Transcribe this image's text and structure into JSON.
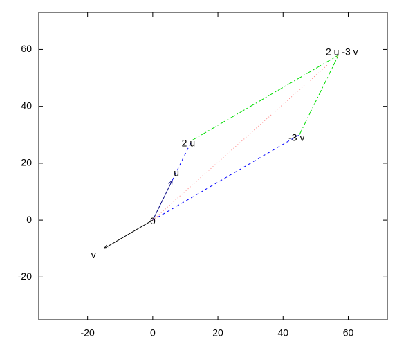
{
  "chart_data": {
    "type": "vector",
    "xlim": [
      -35,
      72
    ],
    "ylim": [
      -35,
      73
    ],
    "xticks": [
      -20,
      0,
      20,
      40,
      60
    ],
    "yticks": [
      -20,
      0,
      20,
      40,
      60
    ],
    "grid": false,
    "points": [
      {
        "label": "0",
        "x": 0,
        "y": 0
      },
      {
        "label": "u",
        "x": 6,
        "y": 14
      },
      {
        "label": "2 u",
        "x": 12,
        "y": 28
      },
      {
        "label": "v",
        "x": -15,
        "y": -10
      },
      {
        "label": "-3 v",
        "x": 45,
        "y": 30
      },
      {
        "label": "2 u -3 v",
        "x": 57,
        "y": 58
      }
    ],
    "segments": [
      {
        "x": [
          0,
          6
        ],
        "y": [
          0,
          14
        ],
        "color": "#000080",
        "dash": "solid",
        "arrow": true
      },
      {
        "x": [
          0,
          -15
        ],
        "y": [
          0,
          -10
        ],
        "color": "#000000",
        "dash": "solid",
        "arrow": true
      },
      {
        "x": [
          6,
          12
        ],
        "y": [
          14,
          28
        ],
        "color": "#0000ff",
        "dash": "dashed",
        "arrow": false
      },
      {
        "x": [
          0,
          45
        ],
        "y": [
          0,
          30
        ],
        "color": "#0000ff",
        "dash": "dashed",
        "arrow": false
      },
      {
        "x": [
          12,
          57
        ],
        "y": [
          28,
          58
        ],
        "color": "#00dd00",
        "dash": "dashdot",
        "arrow": false
      },
      {
        "x": [
          45,
          57
        ],
        "y": [
          30,
          58
        ],
        "color": "#00dd00",
        "dash": "dashdot",
        "arrow": false
      },
      {
        "x": [
          0,
          57
        ],
        "y": [
          0,
          58
        ],
        "color": "#ff8080",
        "dash": "dotted",
        "arrow": false
      }
    ]
  }
}
